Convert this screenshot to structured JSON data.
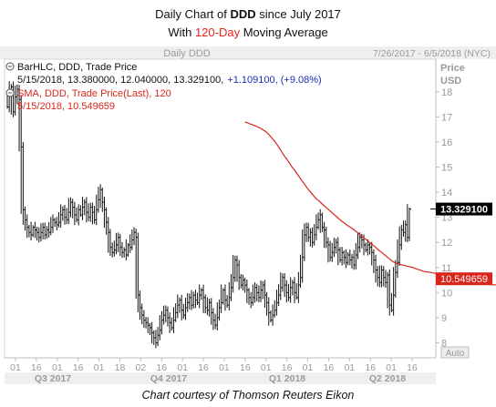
{
  "title": {
    "line1_pre": "Daily Chart of ",
    "line1_ticker": "DDD",
    "line1_post": " since July 2017",
    "line2_pre": "With ",
    "line2_highlight": "120-Day",
    "line2_post": " Moving Average"
  },
  "header": {
    "center_label": "Daily DDD",
    "date_range": "7/26/2017 - 6/5/2018 (NYC)"
  },
  "legend": {
    "bar": {
      "line1": "BarHLC, DDD, Trade Price",
      "values": "5/15/2018, 13.380000, 12.040000, 13.329100,",
      "change": "+1.109100, (+9.08%)"
    },
    "sma": {
      "line1": "SMA, DDD, Trade Price(Last),  120",
      "values": "5/15/2018, 10.549659"
    }
  },
  "axis": {
    "price_label": "Price",
    "currency_label": "USD",
    "auto_label": "Auto"
  },
  "footer": "Chart courtesy of Thomson Reuters Eikon",
  "colors": {
    "sma": "#d9261c",
    "last_price_bg": "#000000",
    "sma_badge_bg": "#d9261c",
    "change_text": "#1a2fb5",
    "axis_text": "#9a9a9a"
  },
  "chart_data": {
    "type": "line",
    "title": "Daily Chart of DDD since July 2017",
    "ylim": [
      7.4,
      19.3
    ],
    "y_ticks": [
      8,
      9,
      10,
      11,
      12,
      13,
      14,
      15,
      16,
      17,
      18
    ],
    "last_price_badge": "13.329100",
    "sma_badge": "10.549659",
    "x_ticks": [
      "01",
      "16",
      "01",
      "16",
      "01",
      "18",
      "02",
      "16",
      "01",
      "16",
      "01",
      "16",
      "01",
      "16",
      "01",
      "16",
      "01",
      "16",
      "01",
      "16"
    ],
    "quarters": [
      "Q3 2017",
      "Q4 2017",
      "Q1 2018",
      "Q2 2018"
    ],
    "series": [
      {
        "name": "DDD",
        "style": "hlc-bars",
        "close": [
          17.4,
          17.9,
          18.2,
          17.2,
          17.8,
          18.1,
          17.7,
          15.8,
          13.3,
          12.9,
          12.6,
          12.4,
          12.3,
          12.6,
          12.5,
          12.4,
          12.2,
          12.4,
          12.6,
          12.3,
          12.5,
          12.4,
          12.6,
          12.9,
          12.8,
          12.7,
          12.8,
          13.1,
          13.3,
          13.0,
          12.9,
          13.2,
          13.6,
          13.4,
          13.1,
          12.9,
          13.3,
          13.1,
          13.4,
          13.6,
          13.2,
          13.0,
          13.4,
          13.2,
          12.9,
          13.3,
          13.7,
          14.1,
          13.6,
          13.3,
          12.8,
          12.4,
          11.8,
          11.6,
          11.7,
          11.9,
          12.2,
          11.8,
          11.6,
          11.7,
          11.5,
          11.9,
          11.8,
          12.1,
          12.4,
          12.2,
          9.9,
          9.4,
          9.1,
          8.9,
          8.8,
          8.7,
          8.6,
          8.4,
          8.2,
          8.0,
          8.3,
          8.5,
          8.9,
          9.1,
          9.3,
          9.0,
          8.8,
          8.6,
          8.9,
          9.2,
          9.5,
          9.7,
          9.3,
          9.1,
          9.4,
          9.6,
          9.8,
          9.5,
          9.9,
          9.7,
          9.6,
          9.9,
          10.1,
          9.8,
          9.4,
          9.3,
          9.6,
          9.2,
          8.9,
          8.7,
          9.0,
          9.4,
          9.6,
          10.1,
          9.7,
          9.5,
          9.8,
          10.2,
          10.6,
          11.3,
          11.1,
          10.6,
          10.3,
          10.5,
          10.3,
          10.1,
          9.8,
          9.6,
          9.8,
          10.2,
          10.0,
          9.8,
          10.1,
          10.3,
          9.9,
          9.6,
          9.2,
          8.9,
          9.1,
          9.3,
          9.6,
          9.9,
          10.2,
          10.6,
          10.3,
          10.0,
          9.8,
          10.2,
          10.4,
          10.0,
          9.8,
          10.3,
          10.6,
          11.4,
          12.3,
          12.6,
          12.2,
          12.4,
          12.0,
          12.3,
          12.6,
          12.9,
          13.1,
          12.6,
          12.5,
          12.0,
          11.9,
          11.4,
          11.6,
          11.8,
          12.0,
          11.7,
          11.3,
          11.6,
          11.4,
          11.2,
          11.5,
          11.3,
          11.4,
          11.1,
          11.5,
          11.8,
          12.2,
          12.1,
          11.9,
          11.7,
          11.9,
          11.8,
          11.6,
          11.3,
          10.9,
          10.6,
          10.4,
          10.9,
          10.6,
          10.4,
          10.7,
          9.5,
          9.3,
          9.9,
          10.8,
          11.2,
          11.9,
          12.5,
          12.4,
          12.7,
          12.2,
          13.3291
        ]
      },
      {
        "name": "SMA 120",
        "style": "line",
        "x_start_index": 120,
        "values": [
          16.8,
          16.77,
          16.74,
          16.71,
          16.68,
          16.65,
          16.62,
          16.58,
          16.54,
          16.49,
          16.44,
          16.38,
          16.3,
          16.22,
          16.12,
          16.03,
          15.92,
          15.81,
          15.68,
          15.55,
          15.43,
          15.33,
          15.21,
          15.09,
          14.98,
          14.88,
          14.77,
          14.66,
          14.54,
          14.43,
          14.32,
          14.21,
          14.11,
          14.01,
          13.92,
          13.83,
          13.74,
          13.67,
          13.6,
          13.53,
          13.46,
          13.39,
          13.32,
          13.25,
          13.18,
          13.11,
          13.04,
          12.97,
          12.9,
          12.84,
          12.78,
          12.72,
          12.66,
          12.61,
          12.56,
          12.5,
          12.44,
          12.38,
          12.31,
          12.24,
          12.18,
          12.12,
          12.06,
          11.99,
          11.93,
          11.87,
          11.8,
          11.73,
          11.66,
          11.6,
          11.53,
          11.47,
          11.4,
          11.34,
          11.27,
          11.22,
          11.18,
          11.15,
          11.13,
          11.11,
          11.09,
          11.07,
          11.05,
          11.03,
          11.01,
          10.99,
          10.96,
          10.93,
          10.91,
          10.88,
          10.85,
          10.83,
          10.82,
          10.81,
          10.8,
          10.78,
          10.77,
          10.76,
          10.74,
          10.72,
          10.7,
          10.68,
          10.65,
          10.63,
          10.61,
          10.6,
          10.58,
          10.56,
          10.54,
          10.52,
          10.5,
          10.49,
          10.48,
          10.47,
          10.46,
          10.44,
          10.42,
          10.4,
          10.38,
          10.36,
          10.35,
          10.34,
          10.33,
          10.33,
          10.32,
          10.31,
          10.31,
          10.31,
          10.31,
          10.31,
          10.31,
          10.32,
          10.32,
          10.33,
          10.35,
          10.4,
          10.46,
          10.5,
          10.55
        ]
      }
    ]
  }
}
